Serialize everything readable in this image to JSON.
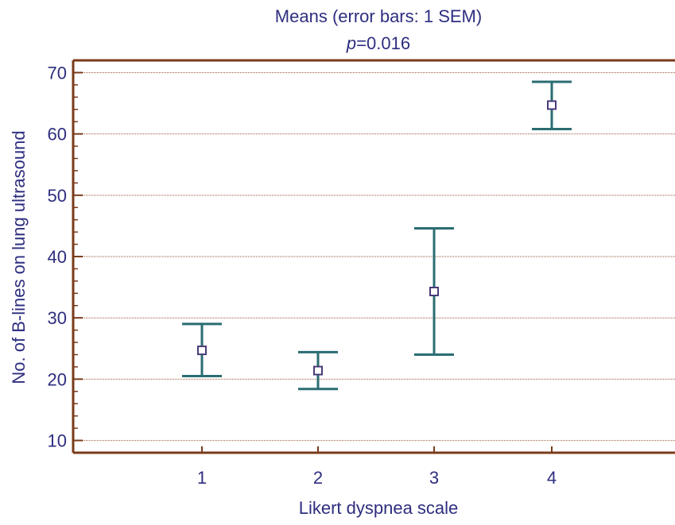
{
  "chart_data": {
    "type": "scatter",
    "title": "Means  (error bars: 1 SEM)",
    "subtitle_symbol": "p",
    "subtitle_value": "=0.016",
    "xlabel": "Likert dyspnea scale",
    "ylabel": "No. of B-lines on lung ultrasound",
    "categories": [
      "1",
      "2",
      "3",
      "4"
    ],
    "means": [
      24.7,
      21.4,
      34.3,
      64.7
    ],
    "sem_low": [
      20.5,
      18.4,
      24.0,
      60.8
    ],
    "sem_high": [
      29.0,
      24.4,
      44.6,
      68.5
    ],
    "ylim": [
      8,
      72
    ],
    "yticks": [
      10,
      20,
      30,
      40,
      50,
      60,
      70
    ],
    "grid": true,
    "colors": {
      "frame": "#7a3b1a",
      "error_bar": "#2a6d72",
      "marker": "#4a3b78",
      "grid": "#9a5a3a",
      "text": "#2e2e80"
    }
  }
}
